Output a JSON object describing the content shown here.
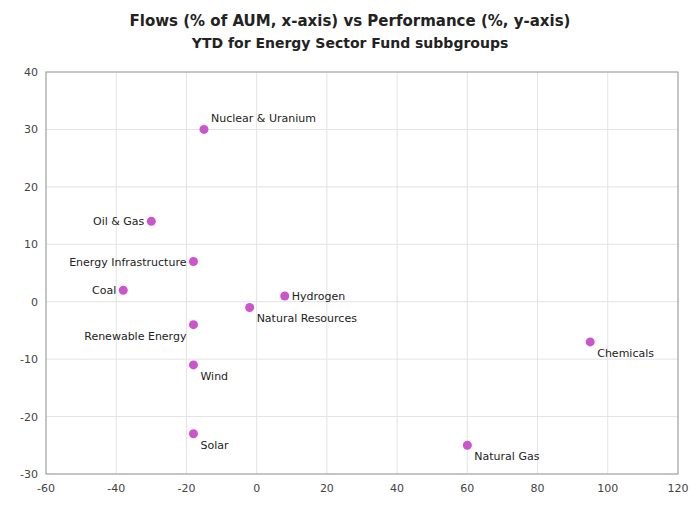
{
  "chart_data": {
    "type": "scatter",
    "title": "Flows (% of AUM, x-axis) vs Performance (%, y-axis)",
    "subtitle": "YTD for Energy Sector Fund subbgroups",
    "labels": [
      "Nuclear & Uranium",
      "Oil & Gas",
      "Energy Infrastructure",
      "Coal",
      "Hydrogen",
      "Natural Resources",
      "Renewable Energy",
      "Chemicals",
      "Wind",
      "Solar",
      "Natural Gas"
    ],
    "x": [
      -15,
      -30,
      -18,
      -38,
      8,
      -2,
      -18,
      95,
      -18,
      -18,
      60
    ],
    "values": [
      30,
      14,
      7,
      2,
      1,
      -1,
      -4,
      -7,
      -11,
      -23,
      -25
    ],
    "color": "#cc55cc",
    "xlim": [
      -60,
      120
    ],
    "ylim": [
      -30,
      40
    ],
    "xticks": [
      -60,
      -40,
      -20,
      0,
      20,
      40,
      60,
      80,
      100,
      120
    ],
    "yticks": [
      -30,
      -20,
      -10,
      0,
      10,
      20,
      30,
      40
    ],
    "grid": true
  }
}
